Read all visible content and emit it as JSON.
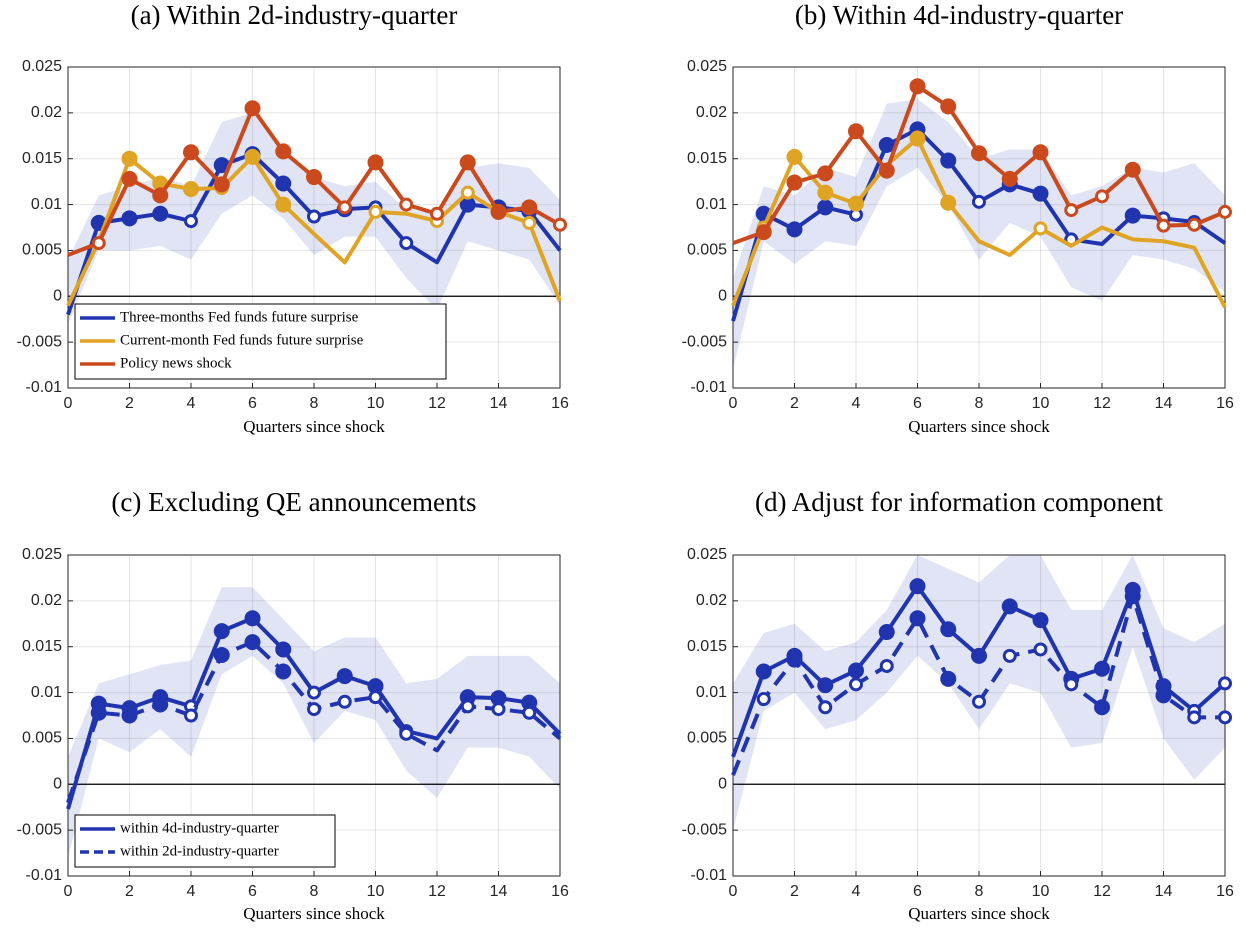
{
  "chart_data": [
    {
      "type": "line",
      "title": "(a) Within 2d-industry-quarter",
      "x_label": "Quarters since shock",
      "x": [
        0,
        1,
        2,
        3,
        4,
        5,
        6,
        7,
        8,
        9,
        10,
        11,
        12,
        13,
        14,
        15,
        16
      ],
      "xlim": [
        0,
        16
      ],
      "xticks": [
        0,
        2,
        4,
        6,
        8,
        10,
        12,
        14,
        16
      ],
      "ylim": [
        -0.01,
        0.025
      ],
      "yticks": [
        -0.01,
        -0.005,
        0,
        0.005,
        0.01,
        0.015,
        0.02,
        0.025
      ],
      "grid": true,
      "hline": 0,
      "legend": "lower left",
      "band": {
        "color": "#e1e4f4",
        "lower": [
          -0.003,
          0.005,
          0.005,
          0.0055,
          0.004,
          0.009,
          0.011,
          0.0085,
          0.0045,
          0.0065,
          0.0065,
          0.002,
          -0.0015,
          0.006,
          0.005,
          0.004,
          -0.001
        ],
        "upper": [
          0.004,
          0.011,
          0.012,
          0.013,
          0.012,
          0.019,
          0.02,
          0.016,
          0.013,
          0.012,
          0.0125,
          0.0095,
          0.009,
          0.014,
          0.0145,
          0.014,
          0.0105
        ]
      },
      "series": [
        {
          "name": "Three-months Fed funds future surprise",
          "color": "#2034b0",
          "values": [
            -0.002,
            0.008,
            0.0085,
            0.009,
            0.0082,
            0.0143,
            0.0155,
            0.0123,
            0.0087,
            0.0095,
            0.0097,
            0.0058,
            0.0037,
            0.01,
            0.0097,
            0.0093,
            0.005
          ],
          "markers": [
            null,
            "filled",
            "filled",
            "filled",
            "open",
            "filled",
            "filled",
            "filled",
            "open",
            "filled",
            "open",
            "open",
            null,
            "filled",
            "filled",
            "filled",
            null
          ]
        },
        {
          "name": "Current-month Fed funds future surprise",
          "color": "#e0a425",
          "values": [
            -0.001,
            0.006,
            0.015,
            0.0123,
            0.0117,
            0.0118,
            0.0152,
            0.01,
            0.0068,
            0.0037,
            0.0092,
            0.009,
            0.0082,
            0.0113,
            0.0092,
            0.008,
            -0.0005
          ],
          "markers": [
            null,
            null,
            "filled",
            "filled",
            "filled",
            "open",
            "filled",
            "filled",
            null,
            null,
            "open",
            null,
            "open",
            "open",
            null,
            "open",
            null
          ]
        },
        {
          "name": "Policy news shock",
          "color": "#cb4a1d",
          "values": [
            0.0045,
            0.0058,
            0.0128,
            0.011,
            0.0157,
            0.0122,
            0.0205,
            0.0158,
            0.013,
            0.0097,
            0.0146,
            0.01,
            0.009,
            0.0146,
            0.0092,
            0.0097,
            0.0078
          ],
          "markers": [
            null,
            "open",
            "filled",
            "filled",
            "filled",
            "filled",
            "filled",
            "filled",
            "filled",
            "open",
            "filled",
            "open",
            "open",
            "filled",
            "filled",
            "filled",
            "open"
          ]
        }
      ]
    },
    {
      "type": "line",
      "title": "(b) Within 4d-industry-quarter",
      "x_label": "Quarters since shock",
      "x": [
        0,
        1,
        2,
        3,
        4,
        5,
        6,
        7,
        8,
        9,
        10,
        11,
        12,
        13,
        14,
        15,
        16
      ],
      "xlim": [
        0,
        16
      ],
      "xticks": [
        0,
        2,
        4,
        6,
        8,
        10,
        12,
        14,
        16
      ],
      "ylim": [
        -0.01,
        0.025
      ],
      "yticks": [
        -0.01,
        -0.005,
        0,
        0.005,
        0.01,
        0.015,
        0.02,
        0.025
      ],
      "grid": true,
      "hline": 0,
      "band": {
        "color": "#e1e4f4",
        "lower": [
          -0.008,
          0.006,
          0.0035,
          0.006,
          0.0055,
          0.012,
          0.014,
          0.01,
          0.004,
          0.008,
          0.0065,
          0.001,
          -0.0005,
          0.0045,
          0.004,
          0.003,
          0.0005
        ],
        "upper": [
          0.002,
          0.012,
          0.011,
          0.014,
          0.013,
          0.021,
          0.0215,
          0.019,
          0.015,
          0.016,
          0.016,
          0.011,
          0.012,
          0.014,
          0.0135,
          0.0145,
          0.011
        ]
      },
      "series": [
        {
          "color": "#2034b0",
          "values": [
            -0.0027,
            0.009,
            0.0073,
            0.0097,
            0.0089,
            0.0165,
            0.0182,
            0.0148,
            0.0103,
            0.0122,
            0.0112,
            0.0062,
            0.0057,
            0.0088,
            0.0085,
            0.0081,
            0.0058
          ],
          "markers": [
            null,
            "filled",
            "filled",
            "filled",
            "open",
            "filled",
            "filled",
            "filled",
            "open",
            "filled",
            "filled",
            "open",
            null,
            "filled",
            "open",
            "open",
            null
          ]
        },
        {
          "color": "#e0a425",
          "values": [
            -0.001,
            0.0075,
            0.0152,
            0.0113,
            0.0101,
            0.0143,
            0.0172,
            0.0102,
            0.006,
            0.0045,
            0.0074,
            0.0055,
            0.0075,
            0.0062,
            0.006,
            0.0053,
            -0.0012
          ],
          "markers": [
            null,
            "open",
            "filled",
            "filled",
            "filled",
            null,
            "filled",
            "filled",
            null,
            null,
            "open",
            null,
            null,
            null,
            null,
            null,
            null
          ]
        },
        {
          "color": "#cb4a1d",
          "values": [
            0.0058,
            0.007,
            0.0124,
            0.0134,
            0.018,
            0.0137,
            0.0229,
            0.0207,
            0.0156,
            0.0128,
            0.0157,
            0.0094,
            0.0109,
            0.0138,
            0.0077,
            0.0078,
            0.0092
          ],
          "markers": [
            null,
            "filled",
            "filled",
            "filled",
            "filled",
            "filled",
            "filled",
            "filled",
            "filled",
            "filled",
            "filled",
            "open",
            "open",
            "filled",
            "open",
            "open",
            "open"
          ]
        }
      ]
    },
    {
      "type": "line",
      "title": "(c) Excluding QE announcements",
      "x_label": "Quarters since shock",
      "x": [
        0,
        1,
        2,
        3,
        4,
        5,
        6,
        7,
        8,
        9,
        10,
        11,
        12,
        13,
        14,
        15,
        16
      ],
      "xlim": [
        0,
        16
      ],
      "xticks": [
        0,
        2,
        4,
        6,
        8,
        10,
        12,
        14,
        16
      ],
      "ylim": [
        -0.01,
        0.025
      ],
      "yticks": [
        -0.01,
        -0.005,
        0,
        0.005,
        0.01,
        0.015,
        0.02,
        0.025
      ],
      "grid": true,
      "hline": 0,
      "legend": "lower left",
      "band": {
        "color": "#e1e4f4",
        "lower": [
          -0.008,
          0.005,
          0.0035,
          0.006,
          0.003,
          0.012,
          0.014,
          0.011,
          0.0045,
          0.008,
          0.007,
          0.0015,
          -0.0015,
          0.004,
          0.004,
          0.003,
          -0.0005
        ],
        "upper": [
          0.003,
          0.011,
          0.012,
          0.013,
          0.0135,
          0.0215,
          0.0215,
          0.018,
          0.0145,
          0.016,
          0.016,
          0.011,
          0.0115,
          0.014,
          0.014,
          0.014,
          0.011
        ]
      },
      "series": [
        {
          "name": "within 4d-industry-quarter",
          "color": "#2034b0",
          "dash": false,
          "values": [
            -0.0027,
            0.0088,
            0.0083,
            0.0095,
            0.0085,
            0.0167,
            0.0181,
            0.0147,
            0.01,
            0.0118,
            0.0107,
            0.0058,
            0.005,
            0.0095,
            0.0094,
            0.0089,
            0.0055
          ],
          "markers": [
            null,
            "filled",
            "filled",
            "filled",
            "open",
            "filled",
            "filled",
            "filled",
            "open",
            "filled",
            "filled",
            "open",
            null,
            "filled",
            "filled",
            "filled",
            null
          ]
        },
        {
          "name": "within 2d-industry-quarter",
          "color": "#2034b0",
          "dash": true,
          "values": [
            -0.002,
            0.0078,
            0.0075,
            0.0087,
            0.0075,
            0.0141,
            0.0155,
            0.0123,
            0.0082,
            0.009,
            0.0095,
            0.0055,
            0.0037,
            0.0085,
            0.0082,
            0.0078,
            0.005
          ],
          "markers": [
            null,
            "filled",
            "filled",
            "filled",
            "open",
            "filled",
            "filled",
            "filled",
            "open",
            "open",
            "open",
            "open",
            null,
            "open",
            "open",
            "open",
            null
          ]
        }
      ]
    },
    {
      "type": "line",
      "title": "(d) Adjust for information component",
      "x_label": "Quarters since shock",
      "x": [
        0,
        1,
        2,
        3,
        4,
        5,
        6,
        7,
        8,
        9,
        10,
        11,
        12,
        13,
        14,
        15,
        16
      ],
      "xlim": [
        0,
        16
      ],
      "xticks": [
        0,
        2,
        4,
        6,
        8,
        10,
        12,
        14,
        16
      ],
      "ylim": [
        -0.01,
        0.025
      ],
      "yticks": [
        -0.01,
        -0.005,
        0,
        0.005,
        0.01,
        0.015,
        0.02,
        0.025
      ],
      "grid": true,
      "hline": 0,
      "band": {
        "color": "#e1e4f4",
        "lower": [
          -0.005,
          0.008,
          0.01,
          0.006,
          0.007,
          0.01,
          0.014,
          0.011,
          0.006,
          0.011,
          0.01,
          0.004,
          0.0045,
          0.015,
          0.005,
          0.0005,
          0.004
        ],
        "upper": [
          0.011,
          0.0165,
          0.0175,
          0.0145,
          0.0155,
          0.019,
          0.025,
          0.0235,
          0.022,
          0.025,
          0.025,
          0.019,
          0.019,
          0.025,
          0.017,
          0.0155,
          0.0175
        ]
      },
      "series": [
        {
          "color": "#2034b0",
          "dash": false,
          "values": [
            0.003,
            0.0123,
            0.014,
            0.0108,
            0.0124,
            0.0166,
            0.0216,
            0.0169,
            0.014,
            0.0194,
            0.0179,
            0.0115,
            0.0126,
            0.0212,
            0.0107,
            0.008,
            0.011
          ],
          "markers": [
            null,
            "filled",
            "filled",
            "filled",
            "filled",
            "filled",
            "filled",
            "filled",
            "filled",
            "filled",
            "filled",
            "filled",
            "filled",
            "filled",
            "filled",
            "open",
            "open"
          ]
        },
        {
          "color": "#2034b0",
          "dash": true,
          "values": [
            0.001,
            0.0093,
            0.0136,
            0.0084,
            0.0109,
            0.0129,
            0.0181,
            0.0115,
            0.009,
            0.014,
            0.0147,
            0.0109,
            0.0084,
            0.0205,
            0.0097,
            0.0073,
            0.0073
          ],
          "markers": [
            null,
            "open",
            "filled",
            "open",
            "open",
            "open",
            "filled",
            "filled",
            "open",
            "open",
            "open",
            "open",
            "filled",
            "filled",
            "filled",
            "open",
            "open"
          ]
        }
      ]
    }
  ]
}
